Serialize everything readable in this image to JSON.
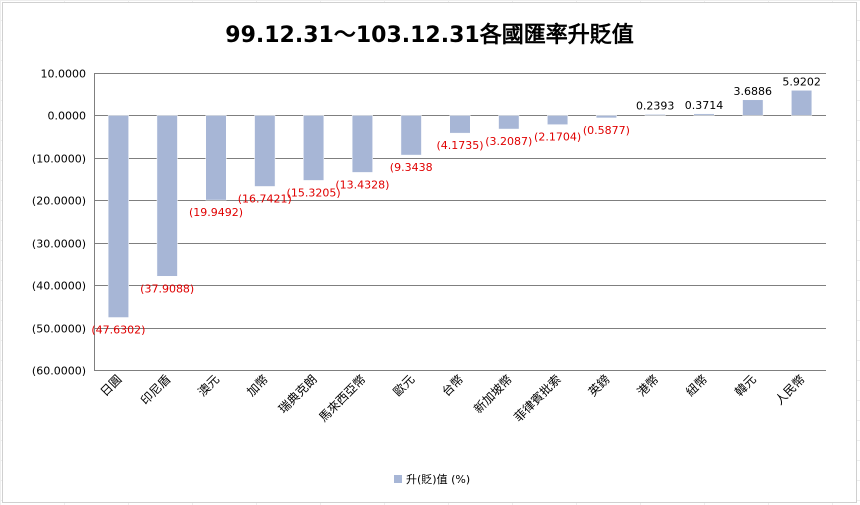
{
  "chart_data": {
    "type": "bar",
    "title": "99.12.31～103.12.31各國匯率升貶值",
    "categories": [
      "日圓",
      "印尼盾",
      "澳元",
      "加幣",
      "瑞典克朗",
      "馬來西亞幣",
      "歐元",
      "台幣",
      "新加坡幣",
      "菲律賓批索",
      "英鎊",
      "港幣",
      "紐幣",
      "韓元",
      "人民幣"
    ],
    "series": [
      {
        "name": "升(貶)值 (%)",
        "values": [
          -47.6302,
          -37.9088,
          -19.9492,
          -16.7421,
          -15.3205,
          -13.4328,
          -9.3438,
          -4.1735,
          -3.2087,
          -2.1704,
          -0.5877,
          0.2393,
          0.3714,
          3.6886,
          5.9202
        ]
      }
    ],
    "data_labels": [
      "(47.6302)",
      "(37.9088)",
      "(19.9492)",
      "(16.7421)",
      "(15.3205)",
      "(13.4328)",
      "(9.3438",
      "(4.1735)",
      "(3.2087)",
      "(2.1704)",
      "(0.5877)",
      "0.2393",
      "0.3714",
      "3.6886",
      "5.9202"
    ],
    "ylim": [
      -60,
      10
    ],
    "yticks": [
      10,
      0,
      -10,
      -20,
      -30,
      -40,
      -50,
      -60
    ],
    "ytick_labels": [
      "10.0000",
      "0.0000",
      "(10.0000)",
      "(20.0000)",
      "(30.0000)",
      "(40.0000)",
      "(50.0000)",
      "(60.0000)"
    ],
    "xlabel": "",
    "ylabel": "",
    "grid": true,
    "legend_position": "bottom",
    "colors": {
      "bar": "#a7b6d6",
      "bar_edge": "#ffffff",
      "negative_label": "#e00000",
      "positive_label": "#000000",
      "grid": "#7f7f7f",
      "axis_text": "#000000"
    }
  }
}
